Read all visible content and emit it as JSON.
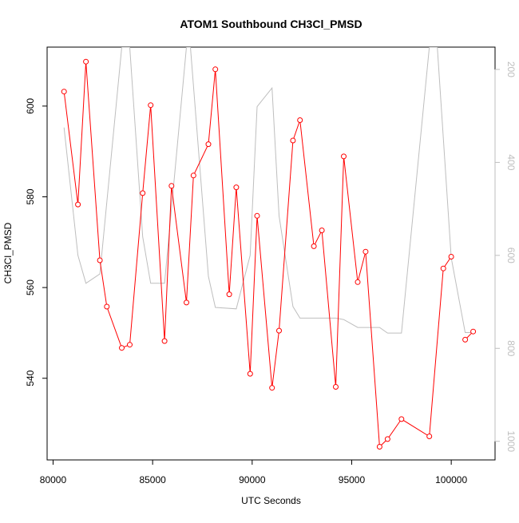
{
  "chart_data": {
    "type": "line",
    "title": "ATOM1 Southbound CH3Cl_PMSD",
    "xlabel": "UTC Seconds",
    "ylabel": "CH3Cl_PMSD",
    "xlim": [
      79700,
      102200
    ],
    "ylim": [
      522,
      613
    ],
    "y2lim": [
      1040,
      152
    ],
    "y2_reversed": true,
    "x_ticks": [
      80000,
      85000,
      90000,
      95000,
      100000
    ],
    "x_tick_labels": [
      "80000",
      "85000",
      "90000",
      "95000",
      "100000"
    ],
    "y_ticks": [
      540,
      560,
      580,
      600
    ],
    "y_tick_labels": [
      "540",
      "560",
      "580",
      "600"
    ],
    "y2_ticks": [
      200,
      400,
      600,
      800,
      1000
    ],
    "y2_tick_labels": [
      "200",
      "400",
      "600",
      "800",
      "1000"
    ],
    "grid": false,
    "colors": {
      "primary": "#ff0000",
      "secondary": "#bebebe",
      "axis": "#000000",
      "secondary_axis": "#bebebe"
    },
    "series": [
      {
        "role": "primary",
        "segments": [
          [
            [
              80550,
              603.2
            ],
            [
              81250,
              578.3
            ],
            [
              81650,
              609.8
            ],
            [
              82350,
              566.0
            ],
            [
              82700,
              555.8
            ],
            [
              83450,
              546.7
            ],
            [
              83850,
              547.4
            ],
            [
              84500,
              580.8
            ],
            [
              84900,
              600.2
            ],
            [
              85600,
              548.2
            ],
            [
              85950,
              582.4
            ],
            [
              86700,
              556.7
            ],
            [
              87050,
              584.7
            ],
            [
              87800,
              591.6
            ],
            [
              88150,
              608.1
            ],
            [
              88850,
              558.5
            ],
            [
              89200,
              582.1
            ],
            [
              89900,
              541.0
            ],
            [
              90250,
              575.8
            ],
            [
              91000,
              537.9
            ],
            [
              91350,
              550.5
            ],
            [
              92050,
              592.4
            ],
            [
              92400,
              596.9
            ],
            [
              93100,
              569.1
            ],
            [
              93500,
              572.6
            ],
            [
              94200,
              538.1
            ],
            [
              94600,
              588.9
            ],
            [
              95300,
              561.2
            ],
            [
              95700,
              567.9
            ],
            [
              96400,
              524.9
            ],
            [
              96800,
              526.6
            ],
            [
              97500,
              531.0
            ],
            [
              98900,
              527.2
            ],
            [
              99600,
              564.2
            ],
            [
              100000,
              566.8
            ]
          ],
          [
            [
              100700,
              548.5
            ],
            [
              101100,
              550.3
            ]
          ]
        ]
      },
      {
        "role": "secondary",
        "segments": [
          [
            [
              80550,
              325
            ],
            [
              81250,
              600
            ],
            [
              81650,
              660
            ],
            [
              82350,
              640
            ],
            [
              83450,
              152
            ],
            [
              83850,
              152
            ],
            [
              84500,
              560
            ],
            [
              84900,
              660
            ],
            [
              85600,
              660
            ],
            [
              86700,
              152
            ],
            [
              86900,
              152
            ],
            [
              87800,
              645
            ],
            [
              88150,
              712
            ],
            [
              89200,
              715
            ],
            [
              89900,
              600
            ],
            [
              90250,
              280
            ],
            [
              91000,
              240
            ],
            [
              91350,
              515
            ],
            [
              92050,
              710
            ],
            [
              92400,
              735
            ],
            [
              94200,
              735
            ],
            [
              94600,
              738
            ],
            [
              95300,
              755
            ],
            [
              96400,
              755
            ],
            [
              96800,
              767
            ],
            [
              97500,
              767
            ],
            [
              98900,
              152
            ],
            [
              99300,
              152
            ],
            [
              100000,
              605
            ],
            [
              100700,
              766
            ],
            [
              101100,
              766
            ]
          ]
        ]
      }
    ]
  }
}
